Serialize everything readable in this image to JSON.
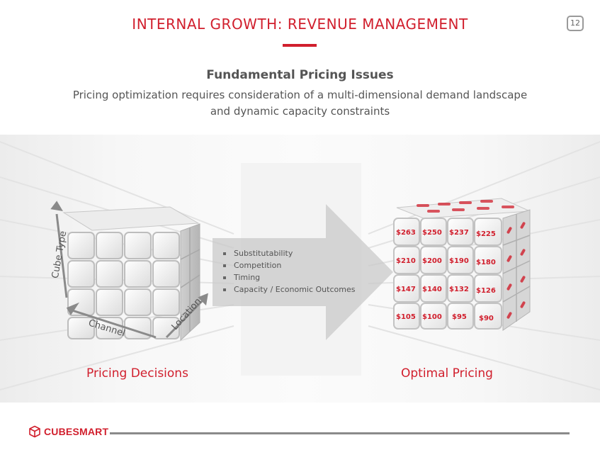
{
  "header": {
    "title": "INTERNAL GROWTH: REVENUE MANAGEMENT",
    "page_number": "12"
  },
  "intro": {
    "heading": "Fundamental Pricing Issues",
    "description": "Pricing optimization requires consideration of a multi-dimensional demand landscape and dynamic capacity constraints"
  },
  "left_cube": {
    "axis_labels": {
      "vertical": "Cube Type",
      "front": "Channel",
      "side": "Location"
    },
    "caption": "Pricing Decisions"
  },
  "arrow": {
    "factors": [
      "Substitutability",
      "Competition",
      "Timing",
      "Capacity / Economic Outcomes"
    ]
  },
  "right_cube": {
    "front_prices": [
      [
        "$263",
        "$250",
        "$237",
        "$225"
      ],
      [
        "$210",
        "$200",
        "$190",
        "$180"
      ],
      [
        "$147",
        "$140",
        "$132",
        "$126"
      ],
      [
        "$105",
        "$100",
        "$95",
        "$90"
      ]
    ],
    "caption": "Optimal Pricing"
  },
  "footer": {
    "logo_text": "CUBESMART"
  },
  "colors": {
    "accent": "#d11f2d",
    "text": "#555555"
  }
}
